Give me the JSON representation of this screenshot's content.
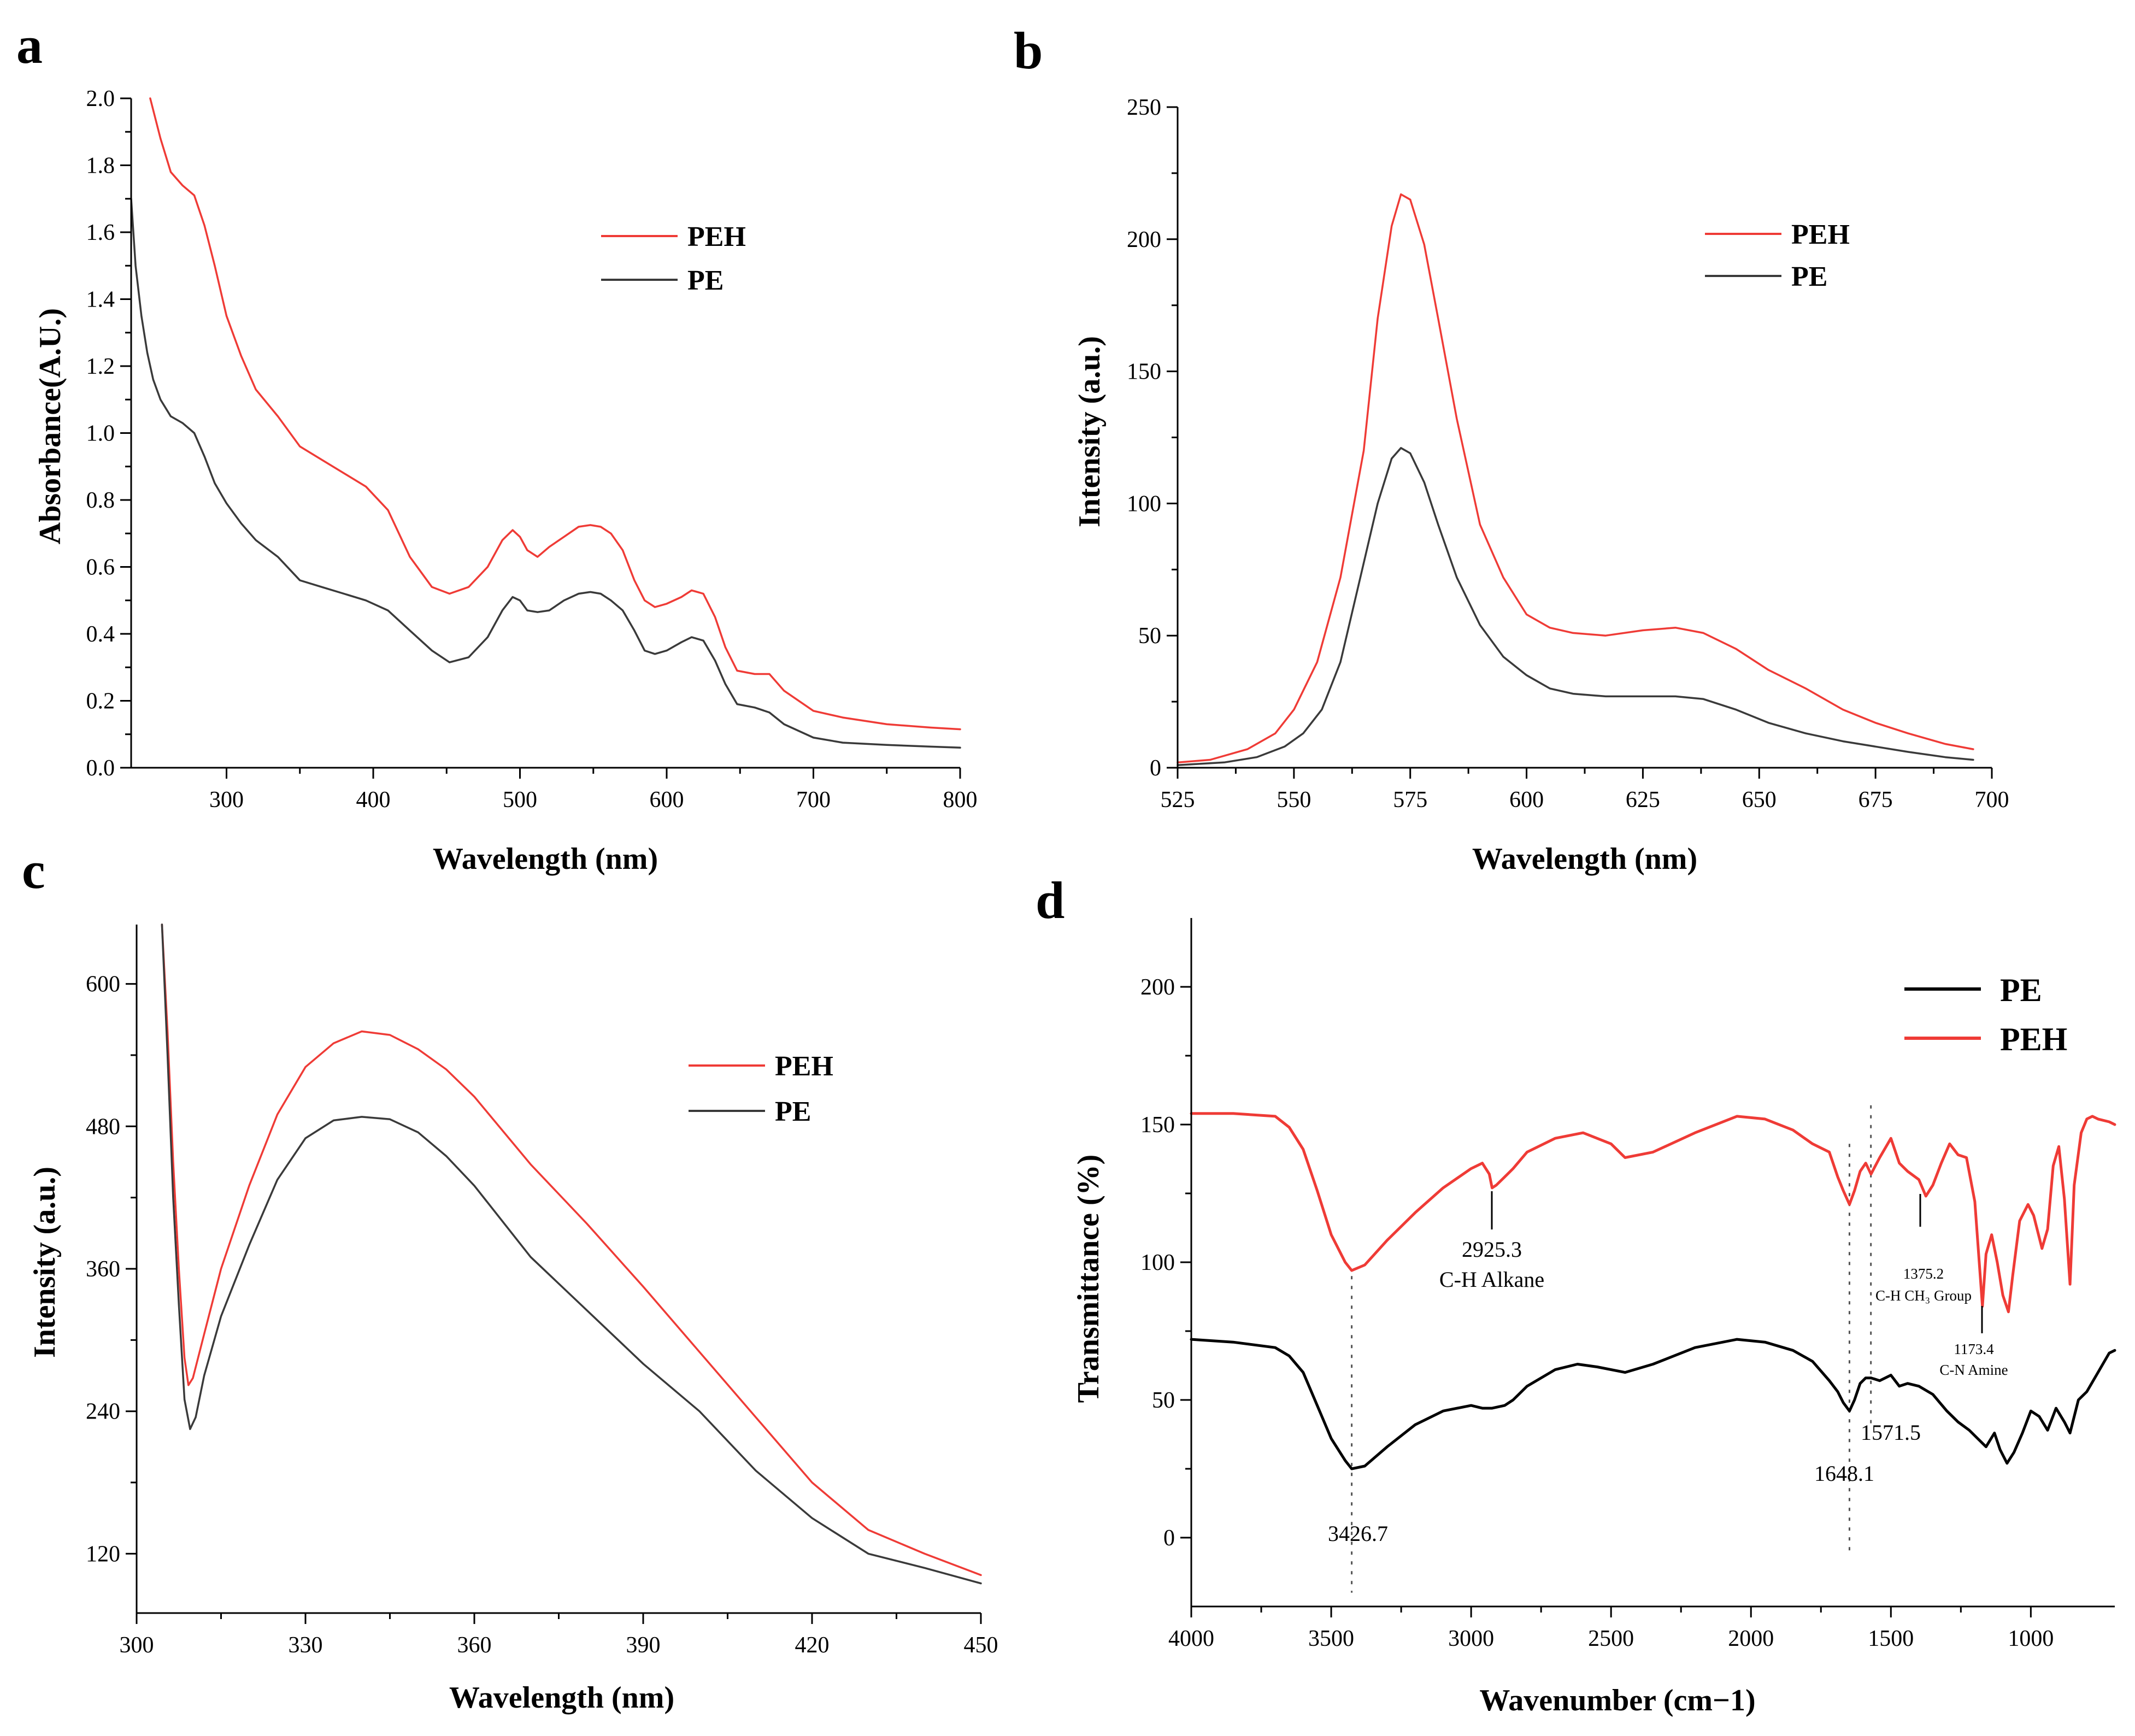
{
  "colors": {
    "PEH": "#ef3b36",
    "PE": "#3a3a3a",
    "PE_ftir": "#000000",
    "axis": "#000000"
  },
  "chart_data": [
    {
      "panel": "a",
      "type": "line",
      "title": "",
      "xlabel": "Wavelength (nm)",
      "ylabel": "Absorbance(A.U.)",
      "xlim": [
        235,
        800
      ],
      "ylim": [
        0,
        2.0
      ],
      "xticks": [
        300,
        400,
        500,
        600,
        700,
        800
      ],
      "yticks": [
        0.0,
        0.2,
        0.4,
        0.6,
        0.8,
        1.0,
        1.2,
        1.4,
        1.6,
        1.8,
        2.0
      ],
      "xtick_labels": [
        "300",
        "400",
        "500",
        "600",
        "700",
        "800"
      ],
      "ytick_labels": [
        "0.0",
        "0.2",
        "0.4",
        "0.6",
        "0.8",
        "1.0",
        "1.2",
        "1.4",
        "1.6",
        "1.8",
        "2.0"
      ],
      "legend": [
        "PEH",
        "PE"
      ],
      "legend_position": "top-right",
      "series": [
        {
          "name": "PEH",
          "color_key": "PEH",
          "x": [
            248,
            255,
            262,
            270,
            278,
            285,
            292,
            300,
            310,
            320,
            335,
            350,
            365,
            380,
            395,
            410,
            425,
            440,
            452,
            465,
            478,
            488,
            495,
            500,
            505,
            512,
            520,
            530,
            540,
            548,
            555,
            562,
            570,
            578,
            585,
            592,
            600,
            610,
            617,
            625,
            633,
            640,
            648,
            660,
            670,
            680,
            700,
            720,
            750,
            780,
            800
          ],
          "y": [
            2.0,
            1.88,
            1.78,
            1.74,
            1.71,
            1.62,
            1.5,
            1.35,
            1.23,
            1.13,
            1.05,
            0.96,
            0.92,
            0.88,
            0.84,
            0.77,
            0.63,
            0.54,
            0.52,
            0.54,
            0.6,
            0.68,
            0.71,
            0.69,
            0.65,
            0.63,
            0.66,
            0.69,
            0.72,
            0.725,
            0.72,
            0.7,
            0.65,
            0.56,
            0.5,
            0.48,
            0.49,
            0.51,
            0.53,
            0.52,
            0.45,
            0.36,
            0.29,
            0.28,
            0.28,
            0.23,
            0.17,
            0.15,
            0.13,
            0.12,
            0.115
          ]
        },
        {
          "name": "PE",
          "color_key": "PE",
          "x": [
            235,
            238,
            242,
            246,
            250,
            255,
            262,
            270,
            278,
            285,
            292,
            300,
            310,
            320,
            335,
            350,
            365,
            380,
            395,
            410,
            425,
            440,
            452,
            465,
            478,
            488,
            495,
            500,
            505,
            512,
            520,
            530,
            540,
            548,
            555,
            562,
            570,
            578,
            585,
            592,
            600,
            610,
            617,
            625,
            633,
            640,
            648,
            660,
            670,
            680,
            700,
            720,
            750,
            780,
            800
          ],
          "y": [
            1.7,
            1.5,
            1.35,
            1.24,
            1.16,
            1.1,
            1.05,
            1.03,
            1.0,
            0.93,
            0.85,
            0.79,
            0.73,
            0.68,
            0.63,
            0.56,
            0.54,
            0.52,
            0.5,
            0.47,
            0.41,
            0.35,
            0.315,
            0.33,
            0.39,
            0.47,
            0.51,
            0.5,
            0.47,
            0.465,
            0.47,
            0.5,
            0.52,
            0.525,
            0.52,
            0.5,
            0.47,
            0.41,
            0.35,
            0.34,
            0.35,
            0.375,
            0.39,
            0.38,
            0.32,
            0.25,
            0.19,
            0.18,
            0.165,
            0.13,
            0.09,
            0.075,
            0.068,
            0.063,
            0.06
          ]
        }
      ]
    },
    {
      "panel": "b",
      "type": "line",
      "title": "",
      "xlabel": "Wavelength (nm)",
      "ylabel": "Intensity (a.u.)",
      "xlim": [
        525,
        700
      ],
      "ylim": [
        0,
        250
      ],
      "xticks": [
        525,
        550,
        575,
        600,
        625,
        650,
        675,
        700
      ],
      "yticks": [
        0,
        50,
        100,
        150,
        200,
        250
      ],
      "xtick_labels": [
        "525",
        "550",
        "575",
        "600",
        "625",
        "650",
        "675",
        "700"
      ],
      "ytick_labels": [
        "0",
        "50",
        "100",
        "150",
        "200",
        "250"
      ],
      "legend": [
        "PEH",
        "PE"
      ],
      "legend_position": "top-right",
      "series": [
        {
          "name": "PEH",
          "color_key": "PEH",
          "x": [
            525,
            532,
            540,
            546,
            550,
            555,
            560,
            565,
            568,
            571,
            573,
            575,
            578,
            581,
            585,
            590,
            595,
            600,
            605,
            610,
            617,
            625,
            632,
            638,
            645,
            652,
            660,
            668,
            675,
            682,
            690,
            696
          ],
          "y": [
            2,
            3,
            7,
            13,
            22,
            40,
            72,
            120,
            170,
            205,
            217,
            215,
            198,
            170,
            132,
            92,
            72,
            58,
            53,
            51,
            50,
            52,
            53,
            51,
            45,
            37,
            30,
            22,
            17,
            13,
            9,
            7
          ]
        },
        {
          "name": "PE",
          "color_key": "PE",
          "x": [
            525,
            535,
            542,
            548,
            552,
            556,
            560,
            564,
            568,
            571,
            573,
            575,
            578,
            581,
            585,
            590,
            595,
            600,
            605,
            610,
            617,
            625,
            632,
            638,
            645,
            652,
            660,
            668,
            675,
            682,
            690,
            696
          ],
          "y": [
            1,
            2,
            4,
            8,
            13,
            22,
            40,
            70,
            100,
            117,
            121,
            119,
            108,
            92,
            72,
            54,
            42,
            35,
            30,
            28,
            27,
            27,
            27,
            26,
            22,
            17,
            13,
            10,
            8,
            6,
            4,
            3
          ]
        }
      ]
    },
    {
      "panel": "c",
      "type": "line",
      "title": "",
      "xlabel": "Wavelength (nm)",
      "ylabel": "Intensity (a.u.)",
      "xlim": [
        300,
        450
      ],
      "ylim": [
        70,
        650
      ],
      "xticks": [
        300,
        330,
        360,
        390,
        420,
        450
      ],
      "yticks": [
        120,
        240,
        360,
        480,
        600
      ],
      "xtick_labels": [
        "300",
        "330",
        "360",
        "390",
        "420",
        "450"
      ],
      "ytick_labels": [
        "120",
        "240",
        "360",
        "480",
        "600"
      ],
      "legend": [
        "PEH",
        "PE"
      ],
      "legend_position": "top-right",
      "series": [
        {
          "name": "PEH",
          "color_key": "PEH",
          "x": [
            304.5,
            305.5,
            306.5,
            307.5,
            308.5,
            309.2,
            310,
            312,
            315,
            320,
            325,
            330,
            335,
            340,
            345,
            350,
            355,
            360,
            370,
            380,
            390,
            400,
            410,
            420,
            430,
            440,
            450
          ],
          "y": [
            650,
            560,
            450,
            360,
            285,
            262,
            268,
            305,
            360,
            430,
            490,
            530,
            550,
            560,
            557,
            545,
            528,
            505,
            448,
            398,
            345,
            290,
            235,
            180,
            140,
            120,
            102
          ]
        },
        {
          "name": "PE",
          "color_key": "PE",
          "x": [
            304.5,
            305.5,
            306.5,
            307.5,
            308.5,
            309.5,
            310.5,
            312,
            315,
            320,
            325,
            330,
            335,
            340,
            345,
            350,
            355,
            360,
            370,
            380,
            390,
            400,
            410,
            420,
            430,
            440,
            450
          ],
          "y": [
            650,
            540,
            420,
            330,
            250,
            225,
            235,
            270,
            320,
            380,
            435,
            470,
            485,
            488,
            486,
            475,
            455,
            430,
            370,
            325,
            280,
            240,
            190,
            150,
            120,
            108,
            95
          ]
        }
      ]
    },
    {
      "panel": "d",
      "type": "line",
      "title": "",
      "xlabel": "Wavenumber (cm−1)",
      "ylabel": "Transmittance (%)",
      "xlim": [
        4000,
        700
      ],
      "ylim": [
        -25,
        225
      ],
      "xticks": [
        4000,
        3500,
        3000,
        2500,
        2000,
        1500,
        1000
      ],
      "yticks": [
        0,
        50,
        100,
        150,
        200
      ],
      "xtick_labels": [
        "4000",
        "3500",
        "3000",
        "2500",
        "2000",
        "1500",
        "1000"
      ],
      "ytick_labels": [
        "0",
        "50",
        "100",
        "150",
        "200"
      ],
      "legend": [
        "PE",
        "PEH"
      ],
      "legend_position": "top-right",
      "series": [
        {
          "name": "PE",
          "color_key": "PE_ftir",
          "x": [
            4000,
            3850,
            3700,
            3650,
            3600,
            3550,
            3500,
            3450,
            3426.7,
            3380,
            3300,
            3200,
            3100,
            3000,
            2960,
            2925,
            2880,
            2850,
            2800,
            2700,
            2620,
            2550,
            2450,
            2350,
            2200,
            2050,
            1950,
            1850,
            1780,
            1720,
            1690,
            1670,
            1648,
            1630,
            1610,
            1590,
            1571,
            1540,
            1500,
            1470,
            1440,
            1400,
            1350,
            1300,
            1260,
            1220,
            1190,
            1160,
            1130,
            1110,
            1085,
            1060,
            1030,
            1000,
            970,
            940,
            910,
            880,
            860,
            830,
            800,
            760,
            720,
            700
          ],
          "y": [
            72,
            71,
            69,
            66,
            60,
            48,
            36,
            28,
            25,
            26,
            33,
            41,
            46,
            48,
            47,
            47,
            48,
            50,
            55,
            61,
            63,
            62,
            60,
            63,
            69,
            72,
            71,
            68,
            64,
            57,
            53,
            49,
            46,
            50,
            56,
            58,
            58,
            57,
            59,
            55,
            56,
            55,
            52,
            46,
            42,
            39,
            36,
            33,
            38,
            32,
            27,
            31,
            38,
            46,
            44,
            39,
            47,
            42,
            38,
            50,
            53,
            60,
            67,
            68
          ]
        },
        {
          "name": "PEH",
          "color_key": "PEH",
          "x": [
            4000,
            3850,
            3700,
            3650,
            3600,
            3550,
            3500,
            3450,
            3426.7,
            3380,
            3300,
            3200,
            3100,
            3000,
            2960,
            2935,
            2925,
            2910,
            2880,
            2850,
            2800,
            2700,
            2600,
            2500,
            2450,
            2350,
            2200,
            2050,
            1950,
            1850,
            1780,
            1720,
            1690,
            1670,
            1648,
            1630,
            1610,
            1590,
            1571,
            1540,
            1500,
            1470,
            1440,
            1400,
            1375,
            1350,
            1320,
            1290,
            1260,
            1230,
            1200,
            1173,
            1160,
            1140,
            1120,
            1100,
            1080,
            1065,
            1040,
            1010,
            990,
            960,
            940,
            920,
            900,
            880,
            860,
            845,
            820,
            800,
            780,
            760,
            720,
            700
          ],
          "y": [
            154,
            154,
            153,
            149,
            141,
            126,
            110,
            100,
            97,
            99,
            108,
            118,
            127,
            134,
            136,
            132,
            127,
            128,
            131,
            134,
            140,
            145,
            147,
            143,
            138,
            140,
            147,
            153,
            152,
            148,
            143,
            140,
            131,
            126,
            121,
            126,
            133,
            136,
            132,
            138,
            145,
            136,
            133,
            130,
            124,
            128,
            136,
            143,
            139,
            138,
            122,
            84,
            103,
            110,
            100,
            88,
            82,
            95,
            115,
            121,
            117,
            105,
            112,
            135,
            142,
            123,
            92,
            128,
            147,
            152,
            153,
            152,
            151,
            150
          ]
        }
      ],
      "annotations": [
        {
          "wavenumber": 3426.7,
          "text": "3426.7"
        },
        {
          "wavenumber": 2925.3,
          "text": "2925.3",
          "sub": "C-H Alkane"
        },
        {
          "wavenumber": 1648.1,
          "text": "1648.1"
        },
        {
          "wavenumber": 1571.5,
          "text": "1571.5"
        },
        {
          "wavenumber": 1375.2,
          "text": "1375.2",
          "sub": "C-H CH₃ Group"
        },
        {
          "wavenumber": 1173.4,
          "text": "1173.4",
          "sub": "C-N Amine"
        }
      ]
    }
  ]
}
